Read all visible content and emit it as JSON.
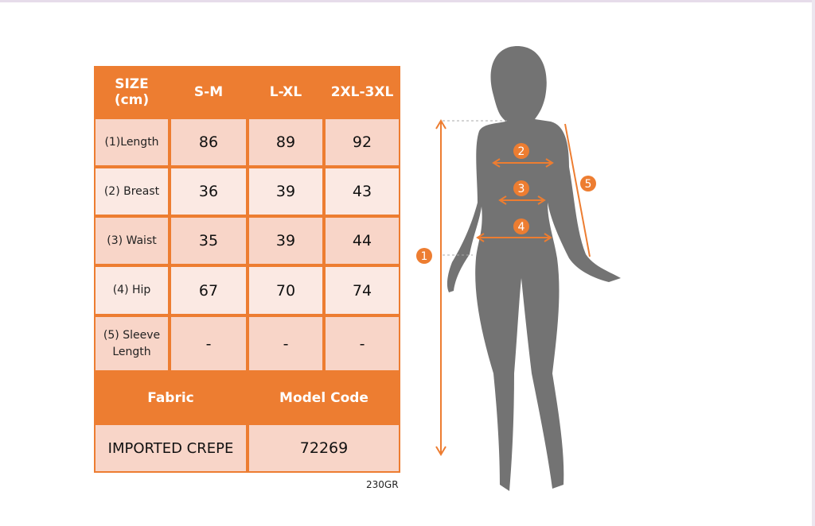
{
  "table": {
    "header": [
      "SIZE\n(cm)",
      "S-M",
      "L-XL",
      "2XL-3XL"
    ],
    "rows": [
      {
        "label": "(1)Length",
        "values": [
          "86",
          "89",
          "92"
        ]
      },
      {
        "label": "(2) Breast",
        "values": [
          "36",
          "39",
          "43"
        ]
      },
      {
        "label": "(3) Waist",
        "values": [
          "35",
          "39",
          "44"
        ]
      },
      {
        "label": "(4) Hip",
        "values": [
          "67",
          "70",
          "74"
        ]
      },
      {
        "label": "(5) Sleeve Length",
        "values": [
          "-",
          "-",
          "-"
        ]
      }
    ],
    "fabric_label": "Fabric",
    "model_code_label": "Model Code",
    "fabric_value": "IMPORTED CREPE",
    "model_code_value": "72269"
  },
  "footer_code": "230GR",
  "figure": {
    "markers": [
      "1",
      "2",
      "3",
      "4",
      "5"
    ]
  },
  "colors": {
    "accent": "#ed7d31",
    "row_dark": "#f8d5c8",
    "row_light": "#fbe9e3",
    "silhouette": "#737373"
  }
}
